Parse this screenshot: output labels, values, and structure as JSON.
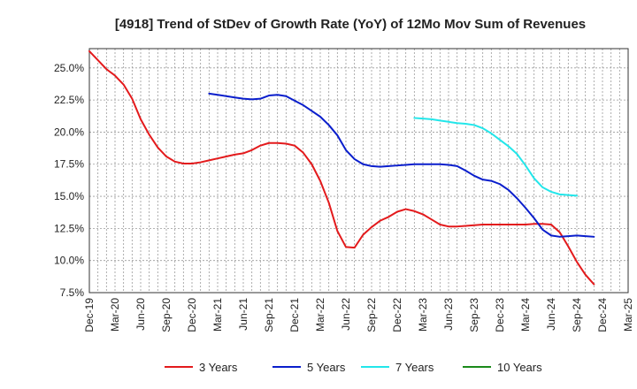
{
  "chart_data": {
    "type": "line",
    "title": "[4918]  Trend of StDev of Growth Rate (YoY) of 12Mo Mov Sum of Revenues",
    "xlabel": "",
    "ylabel": "",
    "ylim": [
      7.5,
      26.5
    ],
    "y_ticks": [
      {
        "value": 7.5,
        "label": "7.5%"
      },
      {
        "value": 10.0,
        "label": "10.0%"
      },
      {
        "value": 12.5,
        "label": "12.5%"
      },
      {
        "value": 15.0,
        "label": "15.0%"
      },
      {
        "value": 17.5,
        "label": "17.5%"
      },
      {
        "value": 20.0,
        "label": "20.0%"
      },
      {
        "value": 22.5,
        "label": "22.5%"
      },
      {
        "value": 25.0,
        "label": "25.0%"
      }
    ],
    "x_ticks": [
      {
        "index": 0,
        "label": "Dec-19"
      },
      {
        "index": 3,
        "label": "Mar-20"
      },
      {
        "index": 6,
        "label": "Jun-20"
      },
      {
        "index": 9,
        "label": "Sep-20"
      },
      {
        "index": 12,
        "label": "Dec-20"
      },
      {
        "index": 15,
        "label": "Mar-21"
      },
      {
        "index": 18,
        "label": "Jun-21"
      },
      {
        "index": 21,
        "label": "Sep-21"
      },
      {
        "index": 24,
        "label": "Dec-21"
      },
      {
        "index": 27,
        "label": "Mar-22"
      },
      {
        "index": 30,
        "label": "Jun-22"
      },
      {
        "index": 33,
        "label": "Sep-22"
      },
      {
        "index": 36,
        "label": "Dec-22"
      },
      {
        "index": 39,
        "label": "Mar-23"
      },
      {
        "index": 42,
        "label": "Jun-23"
      },
      {
        "index": 45,
        "label": "Sep-23"
      },
      {
        "index": 48,
        "label": "Dec-23"
      },
      {
        "index": 51,
        "label": "Mar-24"
      },
      {
        "index": 54,
        "label": "Jun-24"
      },
      {
        "index": 57,
        "label": "Sep-24"
      },
      {
        "index": 60,
        "label": "Dec-24"
      },
      {
        "index": 63,
        "label": "Mar-25"
      }
    ],
    "x_count": 64,
    "grid": true,
    "legend_position": "bottom",
    "series": [
      {
        "name": "3 Years",
        "color": "#e31a1c",
        "start_index": 0,
        "values": [
          26.3,
          25.6,
          24.9,
          24.4,
          23.7,
          22.6,
          21.0,
          19.8,
          18.8,
          18.1,
          17.7,
          17.55,
          17.55,
          17.65,
          17.8,
          17.95,
          18.1,
          18.25,
          18.35,
          18.6,
          18.95,
          19.15,
          19.15,
          19.1,
          18.95,
          18.4,
          17.5,
          16.2,
          14.5,
          12.3,
          11.05,
          11.0,
          12.0,
          12.6,
          13.1,
          13.4,
          13.8,
          14.0,
          13.85,
          13.6,
          13.2,
          12.8,
          12.65,
          12.65,
          12.7,
          12.75,
          12.8,
          12.8,
          12.8,
          12.8,
          12.8,
          12.8,
          12.85,
          12.85,
          12.8,
          12.2,
          11.1,
          9.9,
          8.9,
          8.15
        ]
      },
      {
        "name": "5 Years",
        "color": "#0a1ecc",
        "start_index": 14,
        "values": [
          23.0,
          22.9,
          22.8,
          22.7,
          22.6,
          22.55,
          22.6,
          22.85,
          22.9,
          22.8,
          22.45,
          22.1,
          21.65,
          21.2,
          20.55,
          19.75,
          18.6,
          17.9,
          17.5,
          17.35,
          17.3,
          17.35,
          17.4,
          17.45,
          17.5,
          17.5,
          17.5,
          17.5,
          17.45,
          17.35,
          17.0,
          16.6,
          16.3,
          16.2,
          15.95,
          15.5,
          14.85,
          14.1,
          13.3,
          12.4,
          11.95,
          11.85,
          11.9,
          11.95,
          11.9,
          11.85
        ]
      },
      {
        "name": "7 Years",
        "color": "#22e6ea",
        "start_index": 38,
        "values": [
          21.1,
          21.05,
          21.0,
          20.9,
          20.8,
          20.7,
          20.65,
          20.55,
          20.3,
          19.9,
          19.4,
          18.9,
          18.3,
          17.4,
          16.4,
          15.7,
          15.35,
          15.15,
          15.1,
          15.05
        ]
      },
      {
        "name": "10 Years",
        "color": "#1a8a1a",
        "start_index": 0,
        "values": []
      }
    ]
  }
}
